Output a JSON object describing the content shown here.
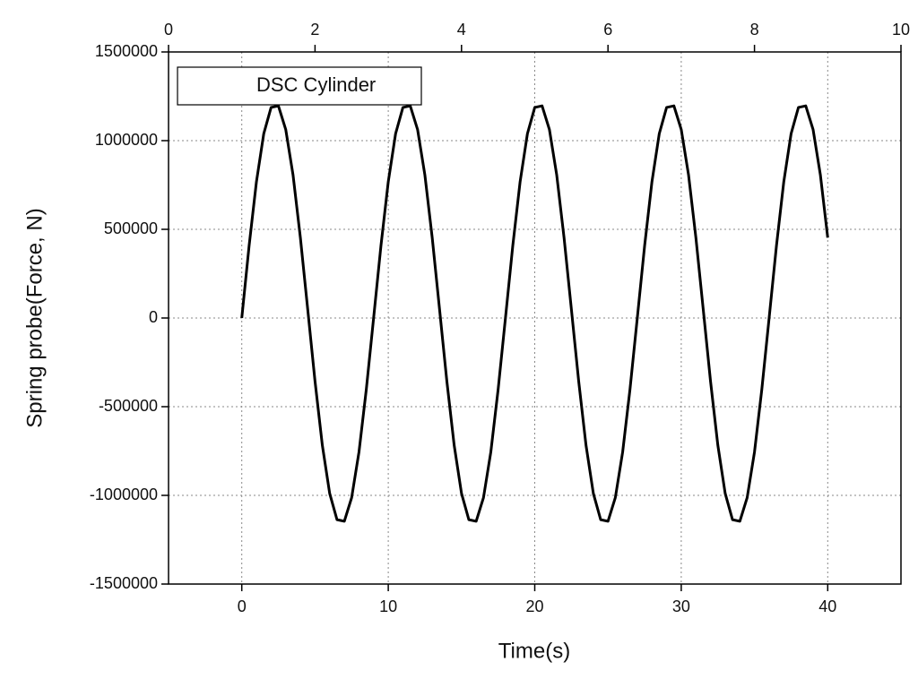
{
  "chart_data": {
    "type": "line",
    "xlabel": "Time(s)",
    "ylabel": "Spring probe(Force, N)",
    "x": [
      0,
      0.5,
      1,
      1.5,
      2,
      2.5,
      3,
      3.5,
      4,
      4.5,
      5,
      5.5,
      6,
      6.5,
      7,
      7.5,
      8,
      8.5,
      9,
      9.5,
      10,
      10.5,
      11,
      11.5,
      12,
      12.5,
      13,
      13.5,
      14,
      14.5,
      15,
      15.5,
      16,
      16.5,
      17,
      17.5,
      18,
      18.5,
      19,
      19.5,
      20,
      20.5,
      21,
      21.5,
      22,
      22.5,
      23,
      23.5,
      24,
      24.5,
      25,
      25.5,
      26,
      26.5,
      27,
      27.5,
      28,
      28.5,
      29,
      29.5,
      30,
      30.5,
      31,
      31.5,
      32,
      32.5,
      33,
      33.5,
      34,
      34.5,
      35,
      35.5,
      36,
      36.5,
      37,
      37.5,
      38,
      38.5,
      39,
      39.5,
      40
    ],
    "series": [
      {
        "name": "DSC Cylinder",
        "color": "#000000",
        "values": [
          0,
          407000,
          768000,
          1039000,
          1187000,
          1196000,
          1063000,
          806000,
          453000,
          50000,
          -357000,
          -718000,
          -989000,
          -1137000,
          -1146000,
          -1013000,
          -756000,
          -403000,
          0,
          407000,
          768000,
          1039000,
          1187000,
          1196000,
          1063000,
          806000,
          453000,
          50000,
          -357000,
          -718000,
          -989000,
          -1137000,
          -1146000,
          -1013000,
          -756000,
          -403000,
          0,
          407000,
          768000,
          1039000,
          1187000,
          1196000,
          1063000,
          806000,
          453000,
          50000,
          -357000,
          -718000,
          -989000,
          -1137000,
          -1146000,
          -1013000,
          -756000,
          -403000,
          0,
          407000,
          768000,
          1039000,
          1187000,
          1196000,
          1063000,
          806000,
          453000,
          50000,
          -357000,
          -718000,
          -989000,
          -1137000,
          -1146000,
          -1013000,
          -756000,
          -403000,
          0,
          407000,
          768000,
          1039000,
          1187000,
          1196000,
          1063000,
          806000,
          453000
        ]
      }
    ],
    "xlim": [
      -5,
      45
    ],
    "xticks": [
      0,
      10,
      20,
      30,
      40
    ],
    "x2lim": [
      0,
      10
    ],
    "x2ticks": [
      0,
      2,
      4,
      6,
      8,
      10
    ],
    "ylim": [
      -1500000,
      1500000
    ],
    "yticks": [
      -1500000,
      -1000000,
      -500000,
      0,
      500000,
      1000000,
      1500000
    ],
    "grid": true,
    "legend": "upper left"
  }
}
